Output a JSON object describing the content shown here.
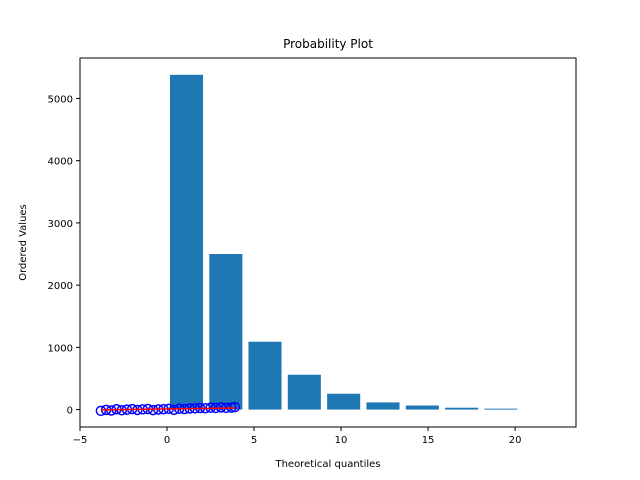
{
  "chart_data": {
    "type": "bar",
    "title": "Probability Plot",
    "xlabel": "Theoretical quantiles",
    "ylabel": "Ordered Values",
    "xlim": [
      -5,
      23.5
    ],
    "ylim": [
      -280,
      5650
    ],
    "xticks": [
      -5,
      0,
      5,
      10,
      15,
      20
    ],
    "yticks": [
      0,
      1000,
      2000,
      3000,
      4000,
      5000
    ],
    "grid": false,
    "bar_color": "#1f77b4",
    "bars": [
      {
        "x": 1.12,
        "width": 1.9,
        "value": 5380
      },
      {
        "x": 3.38,
        "width": 1.9,
        "value": 2500
      },
      {
        "x": 5.63,
        "width": 1.9,
        "value": 1090
      },
      {
        "x": 7.89,
        "width": 1.9,
        "value": 560
      },
      {
        "x": 10.15,
        "width": 1.9,
        "value": 255
      },
      {
        "x": 12.41,
        "width": 1.9,
        "value": 115
      },
      {
        "x": 14.67,
        "width": 1.9,
        "value": 65
      },
      {
        "x": 16.93,
        "width": 1.9,
        "value": 30
      },
      {
        "x": 19.18,
        "width": 1.9,
        "value": 15
      }
    ],
    "series": [
      {
        "type": "scatter",
        "color": "#0000ff",
        "x": [
          -3.8,
          -3.5,
          -3.2,
          -2.9,
          -2.6,
          -2.3,
          -2.0,
          -1.7,
          -1.4,
          -1.1,
          -0.8,
          -0.5,
          -0.2,
          0.1,
          0.4,
          0.7,
          1.0,
          1.3,
          1.6,
          1.9,
          2.2,
          2.5,
          2.8,
          3.1,
          3.4,
          3.7,
          3.9
        ],
        "y": [
          -20,
          -5,
          -15,
          5,
          -10,
          0,
          8,
          -6,
          4,
          10,
          -8,
          2,
          6,
          12,
          -4,
          14,
          10,
          18,
          20,
          25,
          22,
          30,
          26,
          35,
          28,
          32,
          40
        ]
      },
      {
        "type": "line",
        "color": "#ff0000",
        "x": [
          -3.8,
          3.9
        ],
        "y": [
          -5,
          25
        ]
      }
    ]
  }
}
